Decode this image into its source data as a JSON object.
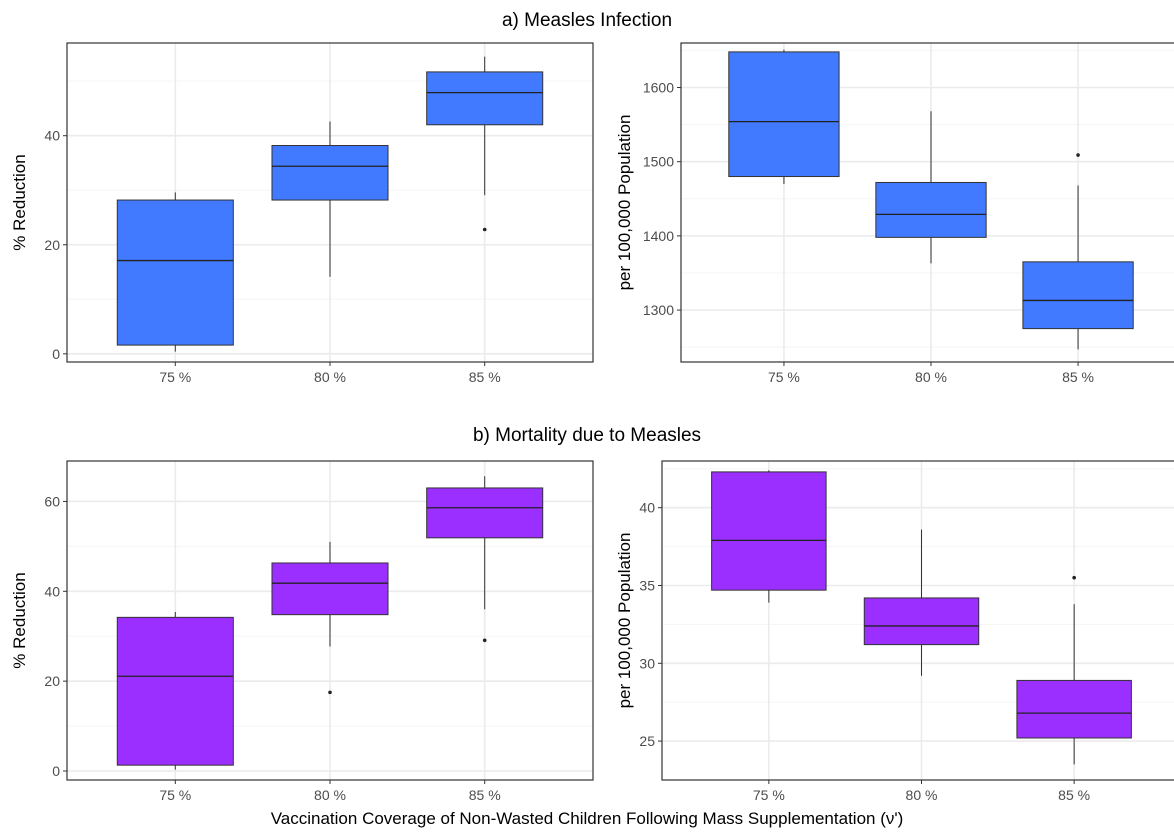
{
  "figure": {
    "section_titles": [
      "a) Measles Infection",
      "b) Mortality due to Measles"
    ],
    "x_label": "Vaccination Coverage of Non-Wasted Children Following Mass Supplementation (ν')",
    "colors": {
      "infection": "#4179ff",
      "mortality": "#9b2fff",
      "outline": "#333333",
      "grid_major": "#ebebeb",
      "grid_minor": "#f5f5f5"
    }
  },
  "chart_data": [
    {
      "type": "box",
      "section": "a) Measles Infection",
      "ylabel": "% Reduction",
      "categories": [
        "75 %",
        "80 %",
        "85 %"
      ],
      "ylim": [
        -1.5,
        57
      ],
      "yticks": [
        0,
        20,
        40
      ],
      "fill": "#4179ff",
      "boxes": [
        {
          "whisker_low": 0.4,
          "q1": 1.6,
          "median": 17.1,
          "q3": 28.2,
          "whisker_high": 29.6,
          "outliers": []
        },
        {
          "whisker_low": 14.1,
          "q1": 28.2,
          "median": 34.4,
          "q3": 38.2,
          "whisker_high": 42.6,
          "outliers": []
        },
        {
          "whisker_low": 29.1,
          "q1": 42.0,
          "median": 47.9,
          "q3": 51.7,
          "whisker_high": 54.5,
          "outliers": [
            22.8
          ]
        }
      ]
    },
    {
      "type": "box",
      "section": "a) Measles Infection",
      "ylabel": "per 100,000 Population",
      "categories": [
        "75 %",
        "80 %",
        "85 %"
      ],
      "ylim": [
        1230,
        1660
      ],
      "yticks": [
        1300,
        1400,
        1500,
        1600
      ],
      "fill": "#4179ff",
      "boxes": [
        {
          "whisker_low": 1470,
          "q1": 1480,
          "median": 1554,
          "q3": 1648,
          "whisker_high": 1651,
          "outliers": []
        },
        {
          "whisker_low": 1363,
          "q1": 1398,
          "median": 1429,
          "q3": 1472,
          "whisker_high": 1568,
          "outliers": []
        },
        {
          "whisker_low": 1247,
          "q1": 1275,
          "median": 1313,
          "q3": 1365,
          "whisker_high": 1468,
          "outliers": [
            1509
          ]
        }
      ]
    },
    {
      "type": "box",
      "section": "b) Mortality due to Measles",
      "ylabel": "% Reduction",
      "categories": [
        "75 %",
        "80 %",
        "85 %"
      ],
      "ylim": [
        -2,
        69
      ],
      "yticks": [
        0,
        20,
        40,
        60
      ],
      "fill": "#9b2fff",
      "boxes": [
        {
          "whisker_low": 0.3,
          "q1": 1.3,
          "median": 21.1,
          "q3": 34.2,
          "whisker_high": 35.4,
          "outliers": []
        },
        {
          "whisker_low": 27.7,
          "q1": 34.8,
          "median": 41.8,
          "q3": 46.3,
          "whisker_high": 51.0,
          "outliers": [
            17.5
          ]
        },
        {
          "whisker_low": 36.0,
          "q1": 51.9,
          "median": 58.6,
          "q3": 63.0,
          "whisker_high": 65.6,
          "outliers": [
            29.1
          ]
        }
      ]
    },
    {
      "type": "box",
      "section": "b) Mortality due to Measles",
      "ylabel": "per 100,000 Population",
      "categories": [
        "75 %",
        "80 %",
        "85 %"
      ],
      "ylim": [
        22.5,
        43
      ],
      "yticks": [
        25,
        30,
        35,
        40
      ],
      "fill": "#9b2fff",
      "boxes": [
        {
          "whisker_low": 33.9,
          "q1": 34.7,
          "median": 37.9,
          "q3": 42.3,
          "whisker_high": 42.4,
          "outliers": []
        },
        {
          "whisker_low": 29.2,
          "q1": 31.2,
          "median": 32.4,
          "q3": 34.2,
          "whisker_high": 38.6,
          "outliers": []
        },
        {
          "whisker_low": 23.5,
          "q1": 25.2,
          "median": 26.8,
          "q3": 28.9,
          "whisker_high": 33.8,
          "outliers": [
            35.5
          ]
        }
      ]
    }
  ]
}
